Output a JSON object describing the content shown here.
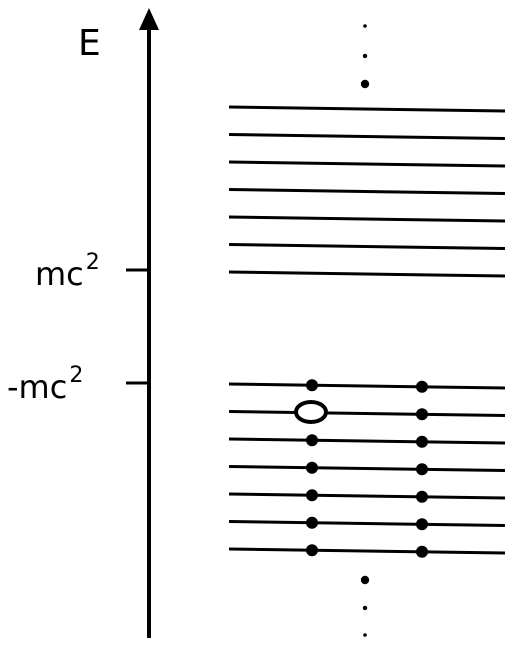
{
  "diagram": {
    "axis_label": "E",
    "tick_labels": {
      "upper": {
        "base": "mc",
        "exponent": "2"
      },
      "lower": {
        "base": "-mc",
        "exponent": "2"
      }
    },
    "positive_energy_levels": 7,
    "negative_energy_levels": 7,
    "filled_columns_per_negative_level": 2,
    "hole": {
      "negative_level_index": 1,
      "column_index": 0
    },
    "colors": {
      "ink": "#000000",
      "background": "#ffffff"
    }
  }
}
